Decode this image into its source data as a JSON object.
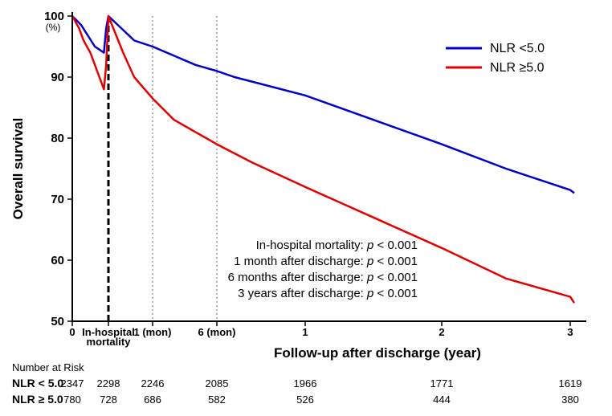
{
  "chart": {
    "type": "kaplan-meier-survival",
    "background_color": "#ffffff",
    "axis_color": "#000000",
    "axis_linewidth": 2.0,
    "series": {
      "nlr_lt_5": {
        "label": "NLR <5.0",
        "color": "#0000cc",
        "linewidth": 2.5,
        "points_pre": [
          [
            0.0,
            100.0
          ],
          [
            0.02,
            98.5
          ],
          [
            0.05,
            95.0
          ],
          [
            0.07,
            94.0
          ],
          [
            0.075,
            98.0
          ]
        ],
        "points_post": [
          [
            0.08,
            100.0
          ],
          [
            0.15,
            96.0
          ],
          [
            0.2,
            95.0
          ],
          [
            0.3,
            93.5
          ],
          [
            0.4,
            92.0
          ],
          [
            0.5,
            91.0
          ],
          [
            0.6,
            90.0
          ],
          [
            1.0,
            87.0
          ],
          [
            1.5,
            83.0
          ],
          [
            2.0,
            79.0
          ],
          [
            2.5,
            75.0
          ],
          [
            3.0,
            71.5
          ],
          [
            3.1,
            71.0
          ]
        ]
      },
      "nlr_ge_5": {
        "label": "NLR ≥5.0",
        "color": "#e60000",
        "linewidth": 2.5,
        "points_pre": [
          [
            0.0,
            100.0
          ],
          [
            0.015,
            98.0
          ],
          [
            0.025,
            96.0
          ],
          [
            0.04,
            94.0
          ],
          [
            0.05,
            92.0
          ],
          [
            0.06,
            90.0
          ],
          [
            0.07,
            88.0
          ],
          [
            0.075,
            92.0
          ]
        ],
        "points_post": [
          [
            0.08,
            100.0
          ],
          [
            0.12,
            94.0
          ],
          [
            0.15,
            90.0
          ],
          [
            0.2,
            86.5
          ],
          [
            0.3,
            83.0
          ],
          [
            0.4,
            81.0
          ],
          [
            0.5,
            79.0
          ],
          [
            0.7,
            76.0
          ],
          [
            1.0,
            72.0
          ],
          [
            1.5,
            67.0
          ],
          [
            2.0,
            62.0
          ],
          [
            2.5,
            57.0
          ],
          [
            3.0,
            54.0
          ],
          [
            3.1,
            53.0
          ]
        ]
      }
    },
    "x_axis": {
      "label": "Follow-up after discharge (year)",
      "ticks": [
        {
          "t": 0.0,
          "label": "0"
        },
        {
          "t": 0.08,
          "label": "In-hospital\nmortality"
        },
        {
          "t": 0.2,
          "label": "1 (mon)"
        },
        {
          "t": 0.5,
          "label": "6 (mon)"
        },
        {
          "t": 1.0,
          "label": "1"
        },
        {
          "t": 2.0,
          "label": "2"
        },
        {
          "t": 3.0,
          "label": "3"
        }
      ]
    },
    "y_axis": {
      "label": "Overall survival",
      "pct_label": "(%)",
      "min": 50,
      "max": 100,
      "tick_step": 10,
      "ticks": [
        50,
        60,
        70,
        80,
        90,
        100
      ]
    },
    "vlines": [
      {
        "t": 0.08,
        "style": "heavy-dash",
        "color": "#000000",
        "width": 3,
        "dash": "8,4"
      },
      {
        "t": 0.2,
        "style": "light-dash",
        "color": "#666666",
        "width": 1,
        "dash": "2,3"
      },
      {
        "t": 0.5,
        "style": "light-dash",
        "color": "#666666",
        "width": 1,
        "dash": "2,3"
      }
    ],
    "annotations": [
      {
        "text_a": "In-hospital mortality: ",
        "text_b": "p",
        "text_c": " < 0.001"
      },
      {
        "text_a": "1 month after discharge: ",
        "text_b": "p",
        "text_c": " < 0.001"
      },
      {
        "text_a": "6 months after discharge: ",
        "text_b": "p",
        "text_c": " < 0.001"
      },
      {
        "text_a": "3 years after discharge: ",
        "text_b": "p",
        "text_c": " < 0.001"
      }
    ]
  },
  "number_at_risk": {
    "heading": "Number at Risk",
    "time_points_t": [
      0.0,
      0.08,
      0.2,
      0.5,
      1.0,
      2.0,
      3.0
    ],
    "rows": [
      {
        "label": "NLR < 5.0",
        "counts": [
          2347,
          2298,
          2246,
          2085,
          1966,
          1771,
          1619
        ]
      },
      {
        "label": "NLR ≥ 5.0",
        "counts": [
          780,
          728,
          686,
          582,
          526,
          444,
          380
        ]
      }
    ]
  },
  "legend": {
    "items": [
      {
        "series": "nlr_lt_5"
      },
      {
        "series": "nlr_ge_5"
      }
    ]
  }
}
